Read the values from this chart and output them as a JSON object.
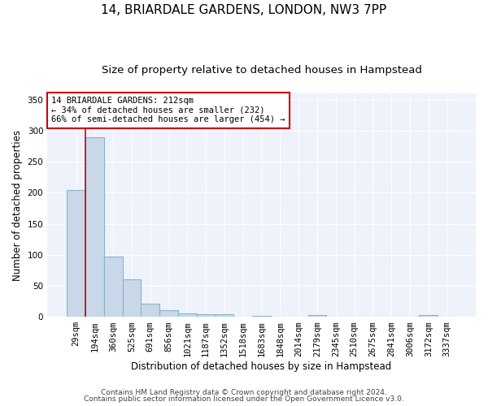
{
  "title": "14, BRIARDALE GARDENS, LONDON, NW3 7PP",
  "subtitle": "Size of property relative to detached houses in Hampstead",
  "xlabel": "Distribution of detached houses by size in Hampstead",
  "ylabel": "Number of detached properties",
  "bar_labels": [
    "29sqm",
    "194sqm",
    "360sqm",
    "525sqm",
    "691sqm",
    "856sqm",
    "1021sqm",
    "1187sqm",
    "1352sqm",
    "1518sqm",
    "1683sqm",
    "1848sqm",
    "2014sqm",
    "2179sqm",
    "2345sqm",
    "2510sqm",
    "2675sqm",
    "2841sqm",
    "3006sqm",
    "3172sqm",
    "3337sqm"
  ],
  "bar_heights": [
    205,
    290,
    97,
    60,
    22,
    11,
    6,
    5,
    4,
    0,
    2,
    0,
    0,
    3,
    0,
    0,
    0,
    0,
    0,
    3,
    0
  ],
  "bar_color": "#c8d8e8",
  "bar_edge_color": "#8ab4cc",
  "highlight_line_color": "#cc0000",
  "property_label": "14 BRIARDALE GARDENS: 212sqm",
  "annotation_line1": "← 34% of detached houses are smaller (232)",
  "annotation_line2": "66% of semi-detached houses are larger (454) →",
  "annotation_box_color": "#cc0000",
  "red_line_x": 0.5,
  "ylim": [
    0,
    360
  ],
  "yticks": [
    0,
    50,
    100,
    150,
    200,
    250,
    300,
    350
  ],
  "bg_color": "#eef2fb",
  "grid_color": "#ffffff",
  "footnote1": "Contains HM Land Registry data © Crown copyright and database right 2024.",
  "footnote2": "Contains public sector information licensed under the Open Government Licence v3.0.",
  "title_fontsize": 11,
  "subtitle_fontsize": 9.5,
  "xlabel_fontsize": 8.5,
  "ylabel_fontsize": 8.5,
  "tick_fontsize": 7.5,
  "annotation_fontsize": 7.5,
  "footnote_fontsize": 6.5
}
